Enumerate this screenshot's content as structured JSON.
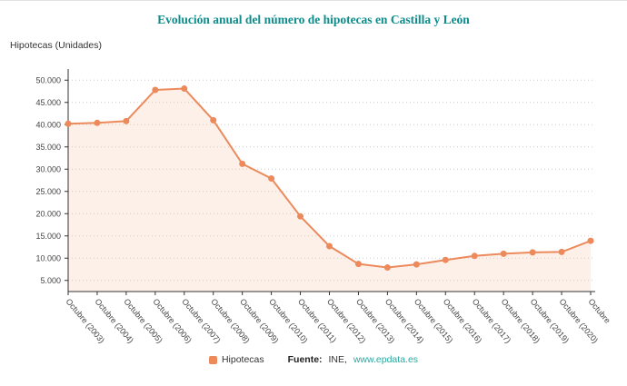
{
  "header": {
    "title": "Evolución anual del número de hipotecas en Castilla y León"
  },
  "chart_data": {
    "type": "line",
    "title": "Evolución anual del número de hipotecas en Castilla y León",
    "unit_label": "Hipotecas (Unidades)",
    "categories": [
      "Octubre (2003)",
      "Octubre (2004)",
      "Octubre (2005)",
      "Octubre (2006)",
      "Octubre (2007)",
      "Octubre (2008)",
      "Octubre (2009)",
      "Octubre (2010)",
      "Octubre (2011)",
      "Octubre (2012)",
      "Octubre (2013)",
      "Octubre (2014)",
      "Octubre (2015)",
      "Octubre (2016)",
      "Octubre (2017)",
      "Octubre (2018)",
      "Octubre (2019)",
      "Octubre (2020)",
      "Octubre"
    ],
    "series": [
      {
        "name": "Hipotecas",
        "values": [
          40200,
          40400,
          40800,
          47800,
          48100,
          41000,
          31200,
          27900,
          19400,
          12700,
          8700,
          7900,
          8600,
          9600,
          10500,
          11000,
          11300,
          11400,
          13900
        ]
      }
    ],
    "ylim": [
      2500,
      52500
    ],
    "yticks": [
      5000,
      10000,
      15000,
      20000,
      25000,
      30000,
      35000,
      40000,
      45000,
      50000
    ],
    "ytick_labels": [
      "5.000",
      "10.000",
      "15.000",
      "20.000",
      "25.000",
      "30.000",
      "35.000",
      "40.000",
      "45.000",
      "50.000"
    ],
    "grid": true,
    "legend_position": "bottom",
    "colors": {
      "line": "#ec8a5c",
      "area": "#fdf0e8",
      "grid": "#cccccc",
      "axis": "#333333",
      "title": "#0e8c8c",
      "link": "#2aa8a0",
      "text": "#333333"
    }
  },
  "footer": {
    "legend_label": "Hipotecas",
    "source_prefix": "Fuente:",
    "source_name": "INE,",
    "source_link": "www.epdata.es"
  }
}
